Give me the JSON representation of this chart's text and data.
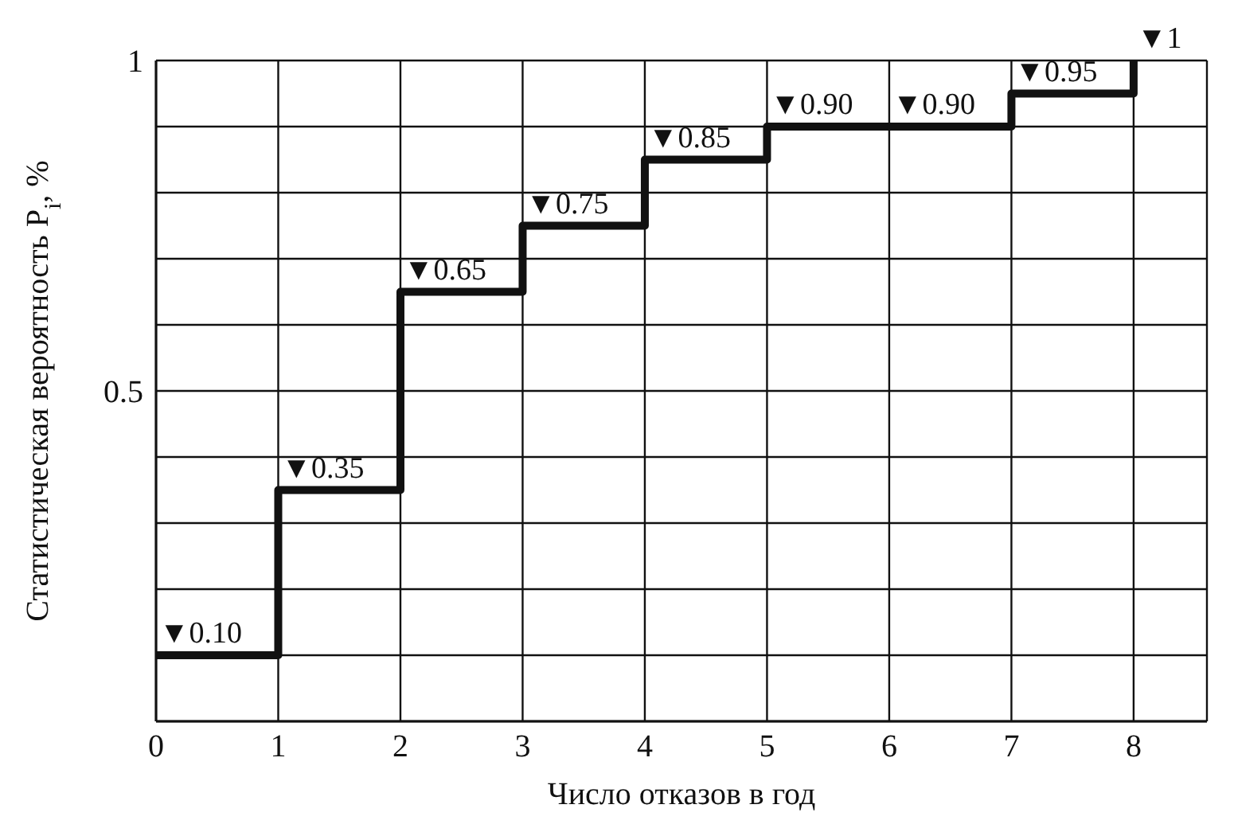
{
  "chart_data": {
    "type": "step",
    "xlabel": "Число отказов в год",
    "ylabel": "Статистическая вероятность P$_{i}$, %",
    "x": [
      0,
      1,
      2,
      3,
      4,
      5,
      6,
      7,
      8
    ],
    "series": [
      {
        "color": "#111111",
        "values": [
          0.1,
          0.35,
          0.65,
          0.75,
          0.85,
          0.9,
          0.9,
          0.95,
          1
        ],
        "value_labels": [
          "▼0.10",
          "▼0.35",
          "▼0.65",
          "▼0.75",
          "▼0.85",
          "▼0.90",
          "▼0.90",
          "▼0.95",
          "▼1"
        ]
      }
    ],
    "xlim": [
      0,
      8.6
    ],
    "xticks": [
      0,
      1,
      2,
      3,
      4,
      5,
      6,
      7,
      8
    ],
    "ylim": [
      0,
      1
    ],
    "yticks": [
      {
        "value": 0,
        "label": null
      },
      {
        "value": 0.1,
        "label": null
      },
      {
        "value": 0.2,
        "label": null
      },
      {
        "value": 0.3,
        "label": null
      },
      {
        "value": 0.4,
        "label": null
      },
      0.5,
      {
        "value": 0.6,
        "label": null
      },
      {
        "value": 0.7,
        "label": null
      },
      {
        "value": 0.8,
        "label": null
      },
      {
        "value": 0.9,
        "label": null
      },
      1
    ],
    "grid": true,
    "marker": "none",
    "line_style": "solid",
    "legend": false
  }
}
